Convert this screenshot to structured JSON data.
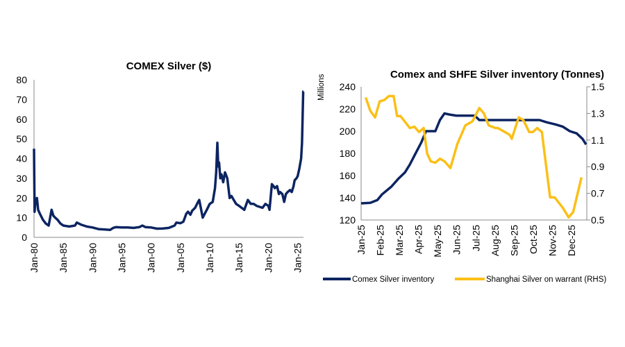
{
  "chart_data": [
    {
      "type": "line",
      "title": "COMEX Silver ($)",
      "xlabel": "",
      "ylabel": "",
      "ylim": [
        0,
        80
      ],
      "yticks": [
        0,
        10,
        20,
        30,
        40,
        50,
        60,
        70,
        80
      ],
      "xlim": [
        1980,
        2026
      ],
      "xticks": [
        {
          "value": 1980,
          "label": "Jan-80"
        },
        {
          "value": 1985,
          "label": "Jan-85"
        },
        {
          "value": 1990,
          "label": "Jan-90"
        },
        {
          "value": 1995,
          "label": "Jan-95"
        },
        {
          "value": 2000,
          "label": "Jan-00"
        },
        {
          "value": 2005,
          "label": "Jan-05"
        },
        {
          "value": 2010,
          "label": "Jan-10"
        },
        {
          "value": 2015,
          "label": "Jan-15"
        },
        {
          "value": 2020,
          "label": "Jan-20"
        },
        {
          "value": 2025,
          "label": "Jan-25"
        }
      ],
      "grid": false,
      "series": [
        {
          "color": "#0c2461",
          "x": [
            1980.0,
            1980.1,
            1980.25,
            1980.5,
            1980.7,
            1981.0,
            1981.5,
            1982.0,
            1982.5,
            1983.0,
            1983.3,
            1983.6,
            1984.0,
            1984.5,
            1985.0,
            1986.0,
            1987.0,
            1987.3,
            1988.0,
            1989.0,
            1990.0,
            1991.0,
            1992.0,
            1993.0,
            1993.5,
            1994.0,
            1995.0,
            1996.0,
            1997.0,
            1998.0,
            1998.5,
            1999.0,
            2000.0,
            2001.0,
            2002.0,
            2003.0,
            2004.0,
            2004.3,
            2005.0,
            2005.5,
            2006.0,
            2006.3,
            2006.7,
            2007.0,
            2007.5,
            2008.0,
            2008.2,
            2008.8,
            2009.5,
            2010.0,
            2010.5,
            2010.9,
            2011.1,
            2011.3,
            2011.45,
            2011.6,
            2011.8,
            2012.0,
            2012.3,
            2012.6,
            2013.0,
            2013.4,
            2013.7,
            2014.0,
            2014.5,
            2015.0,
            2015.9,
            2016.5,
            2017.0,
            2017.5,
            2018.0,
            2018.5,
            2019.0,
            2019.5,
            2020.0,
            2020.2,
            2020.6,
            2020.9,
            2021.1,
            2021.5,
            2021.8,
            2022.0,
            2022.4,
            2022.7,
            2023.0,
            2023.3,
            2023.7,
            2024.0,
            2024.3,
            2024.5,
            2024.8,
            2025.0,
            2025.3,
            2025.6,
            2025.75,
            2025.85,
            2025.95,
            2026.0
          ],
          "values": [
            45,
            13,
            19,
            20,
            14,
            12,
            9,
            7,
            6,
            14,
            11,
            10,
            9,
            7,
            6,
            5.5,
            6,
            7.5,
            6.5,
            5.5,
            5,
            4.2,
            4,
            3.8,
            4.8,
            5.2,
            5,
            5,
            4.8,
            5.2,
            6,
            5.2,
            5,
            4.4,
            4.5,
            4.8,
            6,
            7.5,
            7.2,
            8,
            12,
            13,
            11.5,
            13.5,
            15,
            18,
            19,
            10,
            14,
            17,
            18,
            25,
            33,
            48,
            36,
            38,
            30,
            32,
            28,
            33,
            30,
            20,
            21,
            19.5,
            17,
            16,
            14,
            19,
            17,
            17,
            16,
            15.5,
            15,
            17,
            16,
            14,
            27,
            26,
            25,
            26,
            22,
            23,
            22,
            18,
            22,
            23,
            24,
            23,
            26,
            29,
            30,
            31,
            35,
            40,
            48,
            60,
            74,
            74
          ]
        }
      ]
    },
    {
      "type": "line",
      "title": "Comex and SHFE Silver inventory (Tonnes)",
      "ylabel": "Millions",
      "ylim": [
        120,
        240
      ],
      "yticks": [
        120,
        140,
        160,
        180,
        200,
        220,
        240
      ],
      "y2lim": [
        0.5,
        1.5
      ],
      "y2ticks": [
        0.5,
        0.7,
        0.9,
        1.1,
        1.3,
        1.5
      ],
      "xticks": [
        "Jan-25",
        "Feb-25",
        "Mar-25",
        "Apr-25",
        "May-25",
        "Jun-25",
        "Jul-25",
        "Aug-25",
        "Sep-25",
        "Oct-25",
        "Nov-25",
        "Dec-25"
      ],
      "grid": false,
      "legend_position": "bottom",
      "series": [
        {
          "name": "Comex Silver inventory",
          "axis": "left",
          "color": "#0c2461",
          "x": [
            0,
            0.48,
            0.85,
            1.09,
            1.58,
            1.94,
            2.3,
            2.55,
            2.79,
            3.15,
            3.39,
            3.88,
            4.12,
            4.36,
            4.61,
            4.97,
            5.94,
            6.18,
            7.15,
            8.36,
            8.97,
            9.33,
            9.7,
            10.18,
            10.55,
            10.91,
            11.27,
            11.58,
            11.76
          ],
          "values": [
            135,
            135.5,
            138,
            143,
            150,
            157,
            163,
            170,
            178,
            190,
            200,
            200,
            210,
            216,
            215,
            214,
            214,
            210,
            210,
            210,
            210,
            210,
            208,
            206,
            204,
            200,
            198,
            193,
            188
          ]
        },
        {
          "name": "Shanghai Silver on warrant (RHS)",
          "axis": "right",
          "color": "#fbbf17",
          "x": [
            0.24,
            0.48,
            0.73,
            0.97,
            1.21,
            1.45,
            1.7,
            1.88,
            2.06,
            2.55,
            2.79,
            3.03,
            3.27,
            3.45,
            3.64,
            3.88,
            4.12,
            4.36,
            4.67,
            5.03,
            5.45,
            5.82,
            6.18,
            6.42,
            6.67,
            7.03,
            7.15,
            7.52,
            7.76,
            7.88,
            8.24,
            8.48,
            8.79,
            8.97,
            9.21,
            9.45,
            9.88,
            10.12,
            10.55,
            10.85,
            11.09,
            11.52
          ],
          "values": [
            1.42,
            1.32,
            1.27,
            1.39,
            1.4,
            1.43,
            1.43,
            1.28,
            1.28,
            1.19,
            1.2,
            1.16,
            1.19,
            1.0,
            0.94,
            0.93,
            0.96,
            0.94,
            0.89,
            1.07,
            1.21,
            1.24,
            1.34,
            1.3,
            1.21,
            1.19,
            1.19,
            1.16,
            1.14,
            1.11,
            1.27,
            1.25,
            1.16,
            1.16,
            1.19,
            1.16,
            0.67,
            0.67,
            0.59,
            0.52,
            0.56,
            0.82
          ]
        }
      ]
    }
  ]
}
